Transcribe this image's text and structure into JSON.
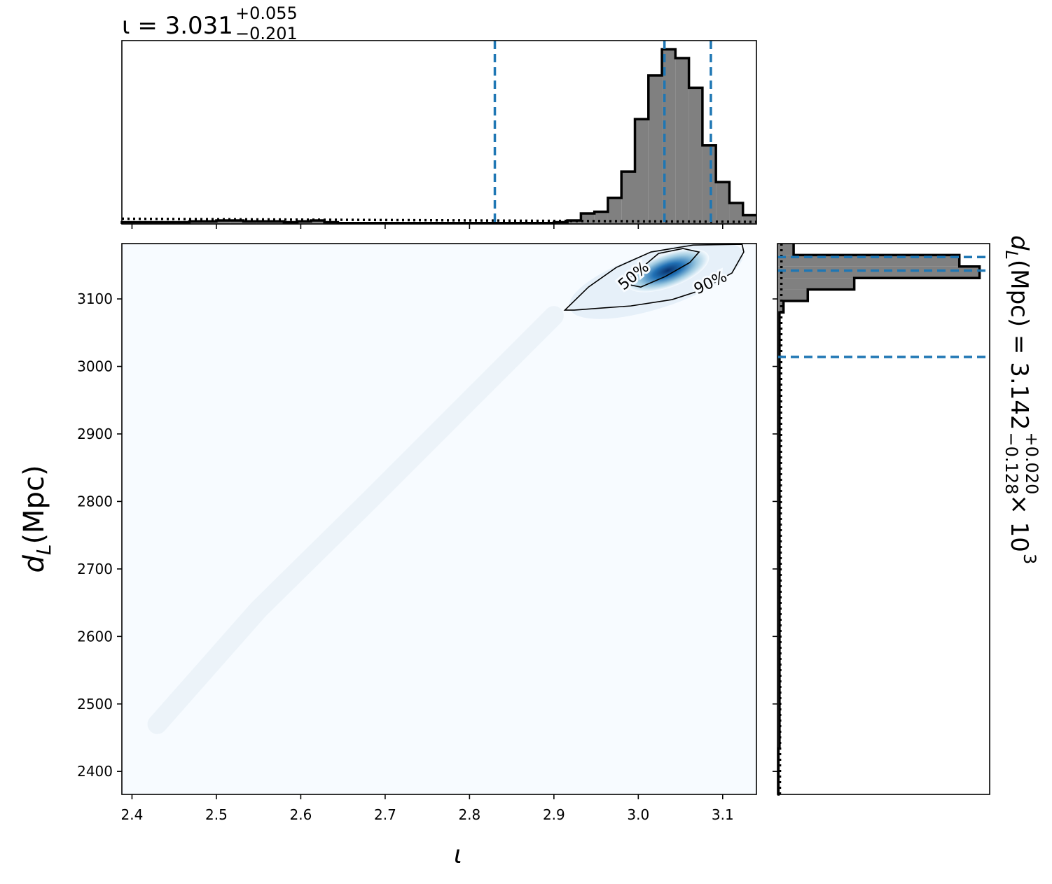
{
  "chart_data": {
    "type": "corner",
    "xlabel": "ι",
    "ylabel": {
      "symbol": "d",
      "subscript": "L",
      "unit": " (Mpc)"
    },
    "xlim": [
      2.388,
      3.14
    ],
    "xticks": [
      2.4,
      2.5,
      2.6,
      2.7,
      2.8,
      2.9,
      {
        "value": 3,
        "label": "3.0"
      },
      3.1
    ],
    "ylim": [
      2366,
      3182
    ],
    "yticks": [
      2400,
      2500,
      2600,
      2700,
      2800,
      2900,
      3000,
      3100
    ],
    "top_histogram": {
      "title": {
        "text": "ι = 3.031",
        "superscript": "+0.055",
        "subscript": "−0.201"
      },
      "bins": [
        2.388,
        2.404,
        2.42,
        2.436,
        2.452,
        2.468,
        2.484,
        2.5,
        2.516,
        2.532,
        2.548,
        2.564,
        2.58,
        2.596,
        2.612,
        2.628,
        2.644,
        2.66,
        2.676,
        2.692,
        2.708,
        2.724,
        2.74,
        2.756,
        2.772,
        2.788,
        2.804,
        2.82,
        2.836,
        2.852,
        2.868,
        2.884,
        2.9,
        2.916,
        2.932,
        2.948,
        2.964,
        2.98,
        2.996,
        3.012,
        3.028,
        3.044,
        3.06,
        3.076,
        3.092,
        3.108,
        3.124,
        3.14
      ],
      "values": [
        0.01,
        0.01,
        0.01,
        0.01,
        0.01,
        0.015,
        0.015,
        0.02,
        0.02,
        0.015,
        0.015,
        0.015,
        0.01,
        0.015,
        0.02,
        0.01,
        0.005,
        0.005,
        0.005,
        0.005,
        0.005,
        0.005,
        0.005,
        0.005,
        0.005,
        0.005,
        0.005,
        0.005,
        0.005,
        0.005,
        0.005,
        0.005,
        0.01,
        0.02,
        0.06,
        0.07,
        0.15,
        0.3,
        0.6,
        0.85,
        1.0,
        0.95,
        0.78,
        0.45,
        0.24,
        0.12,
        0.05
      ],
      "ylim": [
        0,
        1.05
      ],
      "color": "#808080",
      "edgecolor": "#000000",
      "quantiles": [
        2.83,
        3.031,
        3.086
      ],
      "quantile_color": "#1f77b4",
      "reference_line": {
        "x": [
          2.388,
          3.14
        ],
        "values": [
          0.03,
          0.012
        ]
      }
    },
    "right_histogram": {
      "title": {
        "symbol": "d",
        "symbol_subscript": "L",
        "text": " (Mpc) = 3.142",
        "superscript": "+0.020",
        "subscript": "−0.128",
        "multiplier": " × 10",
        "exponent": "3"
      },
      "bins": [
        2366,
        2383,
        2400,
        2417,
        2434,
        2451,
        2468,
        2485,
        2502,
        2519,
        2536,
        2553,
        2570,
        2587,
        2604,
        2621,
        2638,
        2655,
        2672,
        2689,
        2706,
        2723,
        2740,
        2757,
        2774,
        2791,
        2808,
        2825,
        2842,
        2859,
        2876,
        2893,
        2910,
        2927,
        2944,
        2961,
        2978,
        2995,
        3012,
        3029,
        3046,
        3063,
        3080,
        3097,
        3114,
        3131,
        3148,
        3165,
        3182
      ],
      "values": [
        0.005,
        0.005,
        0.005,
        0.005,
        0.01,
        0.01,
        0.01,
        0.01,
        0.01,
        0.01,
        0.01,
        0.01,
        0.01,
        0.01,
        0.01,
        0.01,
        0.01,
        0.01,
        0.01,
        0.01,
        0.01,
        0.01,
        0.01,
        0.01,
        0.01,
        0.01,
        0.01,
        0.01,
        0.01,
        0.01,
        0.01,
        0.01,
        0.01,
        0.01,
        0.01,
        0.01,
        0.01,
        0.01,
        0.01,
        0.01,
        0.01,
        0.01,
        0.03,
        0.15,
        0.38,
        1.0,
        0.9,
        0.08
      ],
      "xlim": [
        0,
        1.05
      ],
      "color": "#808080",
      "edgecolor": "#000000",
      "quantiles": [
        3014,
        3142,
        3162
      ],
      "quantile_color": "#1f77b4",
      "reference_line": {
        "y": [
          2366,
          3182
        ],
        "values": [
          0.012,
          0.02
        ]
      }
    },
    "density": {
      "colormap_low": "#f7fbff",
      "colormap_high": "#08306b",
      "peak": {
        "x": 3.035,
        "y": 3142
      },
      "ridge": {
        "x": [
          2.43,
          2.55,
          2.68,
          2.8,
          2.9
        ],
        "y": [
          2470,
          2640,
          2800,
          2950,
          3075
        ]
      }
    },
    "contours": [
      {
        "label": "50%",
        "x": [
          3.003,
          3.032,
          3.061,
          3.072,
          3.053,
          3.024,
          2.982
        ],
        "y": [
          3117.6,
          3133.2,
          3153.9,
          3169.5,
          3174.7,
          3167.4,
          3122.8
        ],
        "label_x": 2.995,
        "label_y": 3133.2,
        "label_angle": -40
      },
      {
        "label": "90%",
        "x": [
          2.913,
          2.941,
          2.974,
          3.015,
          3.065,
          3.123,
          3.125,
          3.111,
          3.073,
          3.04,
          2.991,
          2.957,
          2.924
        ],
        "y": [
          3083.4,
          3117.6,
          3146.7,
          3169.5,
          3179.8,
          3180.9,
          3169.5,
          3138.4,
          3112.4,
          3099,
          3089.6,
          3086.5,
          3083.4
        ],
        "label_x": 3.086,
        "label_y": 3122.8,
        "label_angle": -25
      }
    ]
  }
}
